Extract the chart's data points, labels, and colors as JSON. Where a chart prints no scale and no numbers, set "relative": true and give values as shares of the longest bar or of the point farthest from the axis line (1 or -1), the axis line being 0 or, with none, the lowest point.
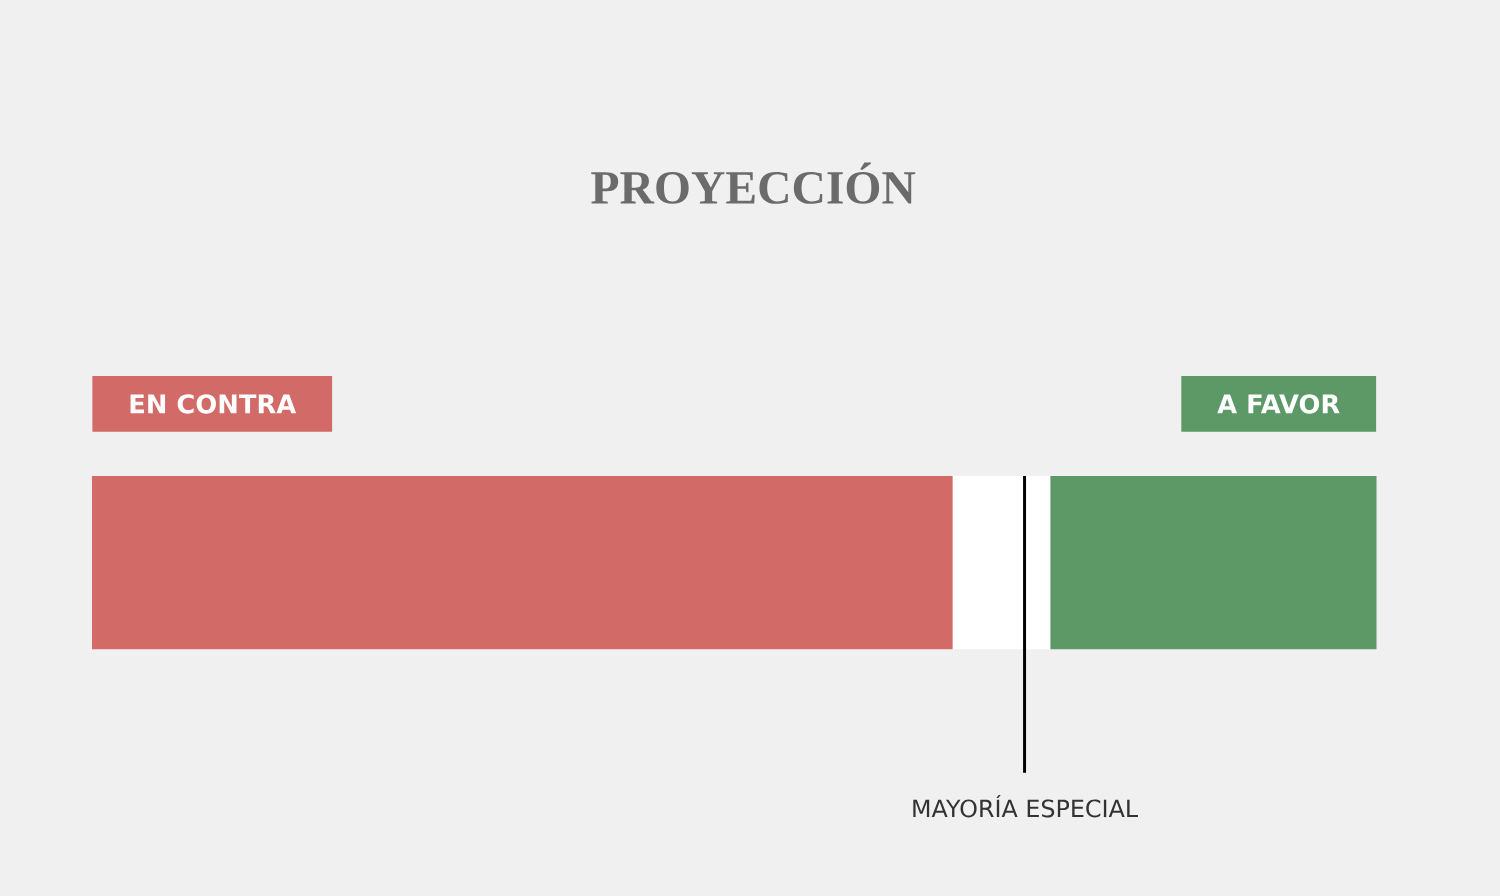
{
  "chart_data": {
    "type": "bar",
    "title": "PROYECCIÓN",
    "orientation": "horizontal",
    "stacked": true,
    "relative": true,
    "categories": [
      null
    ],
    "series": [
      {
        "name": "EN CONTRA",
        "color": "#d26a68",
        "values": [
          0.67
        ]
      },
      {
        "color": "#ffffff",
        "values": [
          0.076
        ]
      },
      {
        "name": "A FAVOR",
        "color": "#5c9966",
        "values": [
          0.254
        ]
      }
    ],
    "ref_lines": [
      {
        "axis": "x",
        "value": 0.726,
        "label": "MAYORÍA ESPECIAL",
        "color": "#000000"
      }
    ]
  }
}
